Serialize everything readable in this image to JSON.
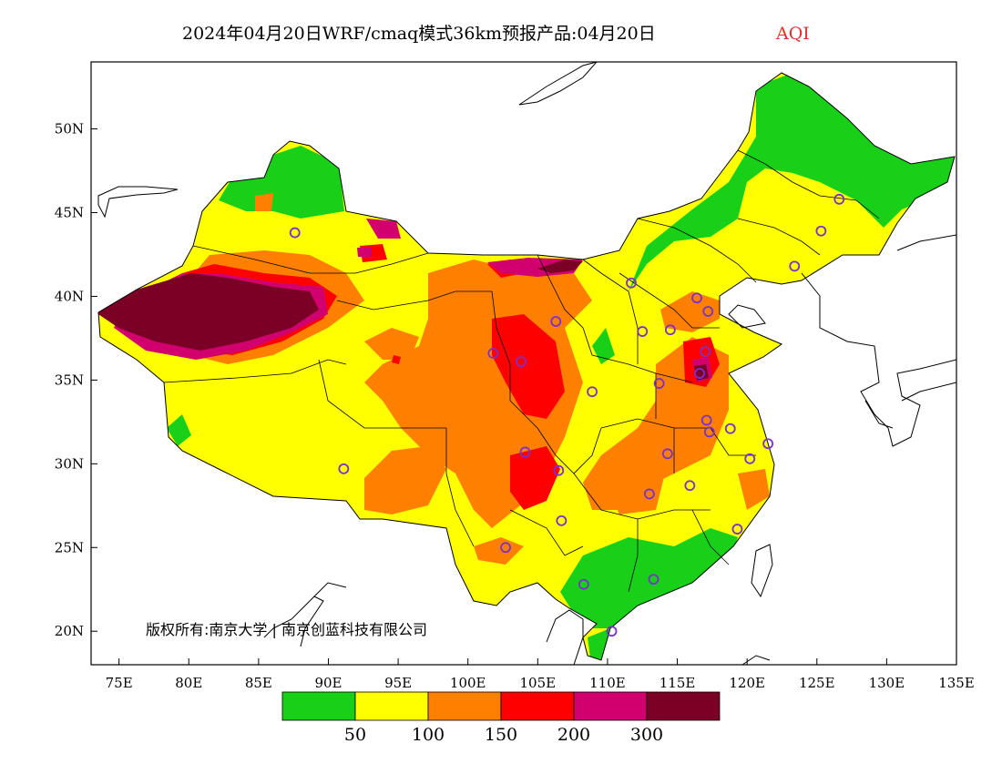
{
  "title": {
    "main": "2024年04月20日WRF/cmaq模式36km预报产品:04月20日",
    "variable": "AQI",
    "variable_color": "#e03030"
  },
  "map": {
    "lon_range": [
      73,
      135
    ],
    "lat_range": [
      18,
      54
    ],
    "x_ticks": [
      {
        "value": 75,
        "label": "75E"
      },
      {
        "value": 80,
        "label": "80E"
      },
      {
        "value": 85,
        "label": "85E"
      },
      {
        "value": 90,
        "label": "90E"
      },
      {
        "value": 95,
        "label": "95E"
      },
      {
        "value": 100,
        "label": "100E"
      },
      {
        "value": 105,
        "label": "105E"
      },
      {
        "value": 110,
        "label": "110E"
      },
      {
        "value": 115,
        "label": "115E"
      },
      {
        "value": 120,
        "label": "120E"
      },
      {
        "value": 125,
        "label": "125E"
      },
      {
        "value": 130,
        "label": "130E"
      },
      {
        "value": 135,
        "label": "135E"
      }
    ],
    "y_ticks": [
      {
        "value": 20,
        "label": "20N"
      },
      {
        "value": 25,
        "label": "25N"
      },
      {
        "value": 30,
        "label": "30N"
      },
      {
        "value": 35,
        "label": "35N"
      },
      {
        "value": 40,
        "label": "40N"
      },
      {
        "value": 45,
        "label": "45N"
      },
      {
        "value": 50,
        "label": "50N"
      }
    ],
    "copyright": "版权所有:南京大学 | 南京创蓝科技有限公司",
    "station_marker_color": "#7b2fd0",
    "stations": [
      {
        "lon": 87.6,
        "lat": 43.8
      },
      {
        "lon": 91.1,
        "lat": 29.7
      },
      {
        "lon": 101.8,
        "lat": 36.6
      },
      {
        "lon": 103.8,
        "lat": 36.1
      },
      {
        "lon": 106.3,
        "lat": 38.5
      },
      {
        "lon": 111.7,
        "lat": 40.8
      },
      {
        "lon": 108.9,
        "lat": 34.3
      },
      {
        "lon": 104.1,
        "lat": 30.7
      },
      {
        "lon": 106.5,
        "lat": 29.6
      },
      {
        "lon": 106.7,
        "lat": 26.6
      },
      {
        "lon": 102.7,
        "lat": 25.0
      },
      {
        "lon": 108.3,
        "lat": 22.8
      },
      {
        "lon": 110.3,
        "lat": 20.0
      },
      {
        "lon": 113.3,
        "lat": 23.1
      },
      {
        "lon": 113.0,
        "lat": 28.2
      },
      {
        "lon": 114.3,
        "lat": 30.6
      },
      {
        "lon": 115.9,
        "lat": 28.7
      },
      {
        "lon": 119.3,
        "lat": 26.1
      },
      {
        "lon": 120.2,
        "lat": 30.3
      },
      {
        "lon": 121.5,
        "lat": 31.2
      },
      {
        "lon": 118.8,
        "lat": 32.1
      },
      {
        "lon": 117.3,
        "lat": 31.9
      },
      {
        "lon": 113.7,
        "lat": 34.8
      },
      {
        "lon": 112.5,
        "lat": 37.9
      },
      {
        "lon": 114.5,
        "lat": 38.0
      },
      {
        "lon": 116.4,
        "lat": 39.9
      },
      {
        "lon": 117.2,
        "lat": 39.1
      },
      {
        "lon": 117.0,
        "lat": 36.7
      },
      {
        "lon": 116.6,
        "lat": 35.4
      },
      {
        "lon": 117.1,
        "lat": 32.6
      },
      {
        "lon": 123.4,
        "lat": 41.8
      },
      {
        "lon": 125.3,
        "lat": 43.9
      },
      {
        "lon": 126.6,
        "lat": 45.8
      }
    ]
  },
  "legend": {
    "colors": [
      "#18d018",
      "#ffff00",
      "#ff8000",
      "#ff0000",
      "#d2006e",
      "#7a0026"
    ],
    "thresholds": [
      "50",
      "100",
      "150",
      "200",
      "300"
    ]
  }
}
